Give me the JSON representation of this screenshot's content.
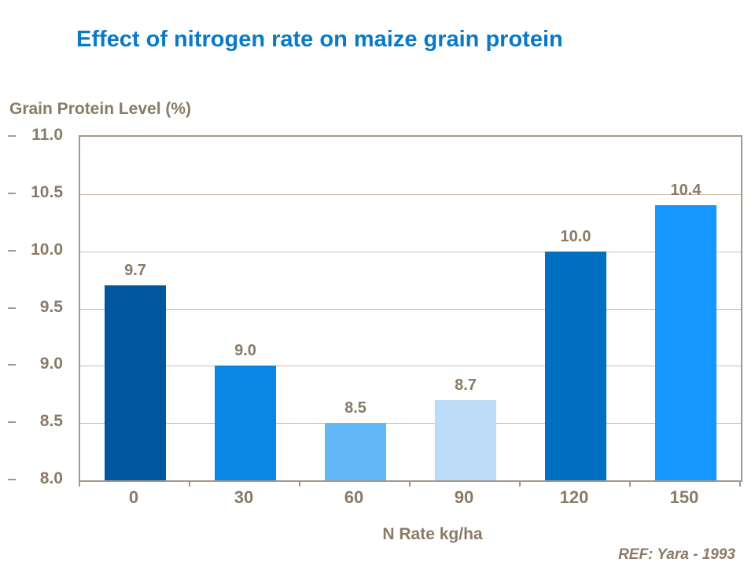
{
  "title": "Effect of nitrogen rate on maize grain protein",
  "reference": "REF: Yara - 1993",
  "colors": {
    "title_blue": "#0a7ac6",
    "label_brown": "#8a7a66",
    "plot_border": "#a5988a",
    "gridline": "#c9bdae",
    "bars": [
      "#00579d",
      "#0a86e6",
      "#63b8f7",
      "#bcdcfa",
      "#0170c0",
      "#1497fe"
    ]
  },
  "chart_data": {
    "type": "bar",
    "title": "Effect of nitrogen rate on maize grain protein",
    "xlabel": "N Rate kg/ha",
    "ylabel": "Grain Protein Level (%)",
    "categories": [
      "0",
      "30",
      "60",
      "90",
      "120",
      "150"
    ],
    "values": [
      9.7,
      9.0,
      8.5,
      8.7,
      10.0,
      10.4
    ],
    "value_labels": [
      "9.7",
      "9.0",
      "8.5",
      "8.7",
      "10.0",
      "10.4"
    ],
    "bar_colors": [
      "#00579d",
      "#0a86e6",
      "#63b8f7",
      "#bcdcfa",
      "#0170c0",
      "#1497fe"
    ],
    "ylim": [
      8.0,
      11.0
    ],
    "ytick_labels": [
      "11.0",
      "10.5",
      "10.0",
      "9.5",
      "9.0",
      "8.5",
      "8.0"
    ],
    "grid": true,
    "legend": false,
    "annotation": "REF: Yara - 1993"
  }
}
